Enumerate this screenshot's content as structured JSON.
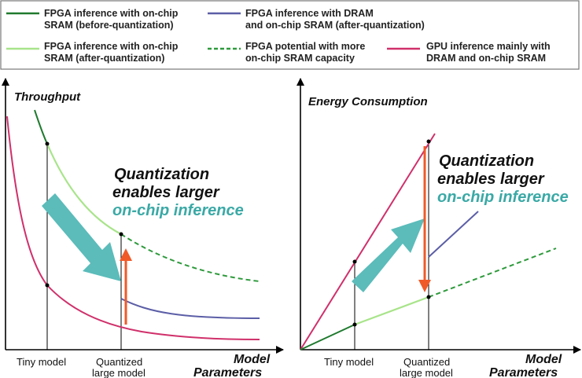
{
  "legend": {
    "item1": {
      "line1": "FPGA inference with on-chip",
      "line2": "SRAM (before-quantization)"
    },
    "item2": {
      "line1": "FPGA inference with DRAM",
      "line2": "and on-chip SRAM (after-quantization)"
    },
    "item3": {
      "line1": "FPGA inference with on-chip",
      "line2": "SRAM (after-quantization)"
    },
    "item4": {
      "line1": "FPGA potential with more",
      "line2": "on-chip SRAM capacity"
    },
    "item5": {
      "line1": "GPU inference mainly with",
      "line2": "DRAM and on-chip SRAM"
    }
  },
  "left_panel": {
    "y_title": "Throughput",
    "x_title_1": "Model",
    "x_title_2": "Parameters",
    "tick1": "Tiny model",
    "tick2_1": "Quantized",
    "tick2_2": "large model",
    "annot_1": "Quantization",
    "annot_2": "enables larger",
    "annot_3": "on-chip inference"
  },
  "right_panel": {
    "y_title": "Energy Consumption",
    "x_title_1": "Model",
    "x_title_2": "Parameters",
    "tick1": "Tiny model",
    "tick2_1": "Quantized",
    "tick2_2": "large model",
    "annot_1": "Quantization",
    "annot_2": "enables larger",
    "annot_3": "on-chip inference"
  },
  "colors": {
    "fpga_before": "#1f7a2e",
    "fpga_dram": "#5b5ea6",
    "fpga_after": "#a8e48a",
    "fpga_potential": "#2e9a3c",
    "gpu": "#d0306a",
    "arrow_teal": "#5bbcba",
    "arrow_orange": "#f05a28"
  }
}
